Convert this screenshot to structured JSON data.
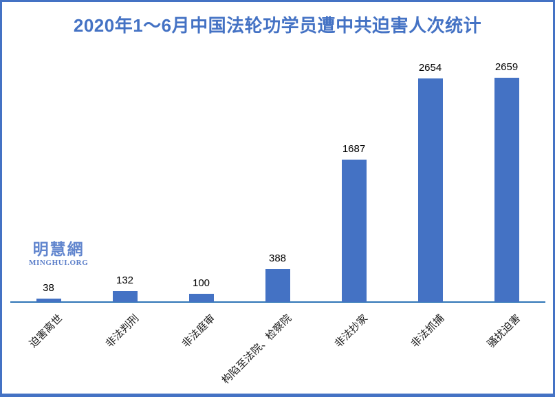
{
  "title": {
    "text": "2020年1～6月中国法轮功学员遭中共迫害人次统计",
    "color": "#4472C4"
  },
  "logo": {
    "name": "明慧網",
    "domain": "MINGHUI.ORG",
    "color": "#5B7EC9"
  },
  "chart_data": {
    "type": "bar",
    "title": "2020年1～6月中国法轮功学员遭中共迫害人次统计",
    "categories": [
      "迫害离世",
      "非法判刑",
      "非法庭审",
      "构陷至法院、检察院",
      "非法抄家",
      "非法抓捕",
      "骚扰迫害"
    ],
    "values": [
      38,
      132,
      100,
      388,
      1687,
      2654,
      2659
    ],
    "xlabel": "",
    "ylabel": "",
    "ylim": [
      0,
      2800
    ],
    "bar_color": "#4472C4",
    "axis_color": "#2E75B6",
    "value_labels_shown": true,
    "category_label_rotation_deg": -45,
    "grid": false,
    "legend": "none"
  }
}
